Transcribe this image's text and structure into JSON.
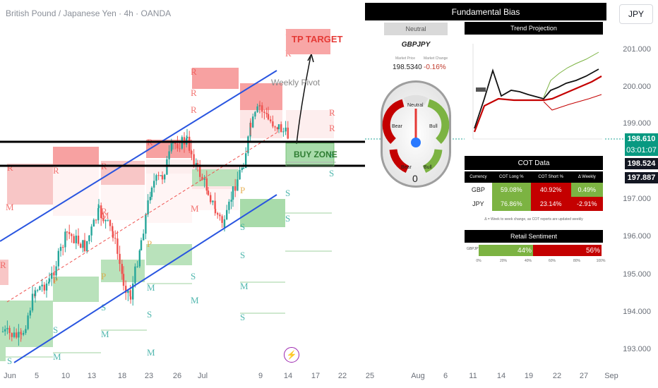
{
  "header": {
    "symbol_title": "British Pound / Japanese Yen · 4h · OANDA",
    "currency_button": "JPY"
  },
  "price_axis": {
    "labels": [
      "201.000",
      "200.000",
      "199.000",
      "197.000",
      "196.000",
      "195.000",
      "194.000",
      "193.000"
    ],
    "current_price": "198.610",
    "countdown": "03:01:07",
    "level_1": "198.524",
    "level_2": "197.887",
    "colors": {
      "current": "#089981",
      "level": "#131722"
    }
  },
  "time_axis": {
    "labels": [
      "Jun",
      "5",
      "10",
      "13",
      "18",
      "23",
      "26",
      "Jul",
      "9",
      "14",
      "17",
      "22",
      "25",
      "Aug",
      "6",
      "11",
      "14",
      "19",
      "22",
      "27",
      "Sep"
    ]
  },
  "annotations": {
    "tp_target": "TP TARGET",
    "buy_zone": "BUY ZONE",
    "weekly_pivot": "Weekly Pivot",
    "pivot_letters": {
      "r": "R",
      "s": "S",
      "m": "M",
      "p": "P"
    },
    "colors": {
      "bull": "#26a69a",
      "bear": "#ef5350",
      "channel": "#2955e0"
    }
  },
  "fundamental": {
    "title": "Fundamental Bias",
    "bias": "Neutral",
    "pair": "GBPJPY",
    "market_price_label": "Market Price",
    "market_change_label": "Market Change",
    "market_price": "198.5340",
    "market_change": "-0.16%",
    "gauge": {
      "neutral": "Neutral",
      "bear": "Bear",
      "bull": "Bull",
      "strong_bear": "Bear",
      "strong_bull": "Bull",
      "value": "0"
    }
  },
  "trend_projection": {
    "title": "Trend Projection"
  },
  "cot": {
    "title": "COT Data",
    "headers": [
      "Currency",
      "COT Long %",
      "COT Short %",
      "Δ Weekly"
    ],
    "rows": [
      {
        "currency": "GBP",
        "long": "59.08%",
        "short": "40.92%",
        "delta": "0.49%"
      },
      {
        "currency": "JPY",
        "long": "76.86%",
        "short": "23.14%",
        "delta": "-2.91%"
      }
    ],
    "note": "Δ = Week to week change, as COT reports are updated weekly"
  },
  "retail": {
    "title": "Retail Sentiment",
    "pair_label": "GBPJPY",
    "long": "44%",
    "short": "56%",
    "long_fraction": 0.44,
    "ticks": [
      "0%",
      "20%",
      "40%",
      "60%",
      "80%",
      "100%"
    ]
  }
}
